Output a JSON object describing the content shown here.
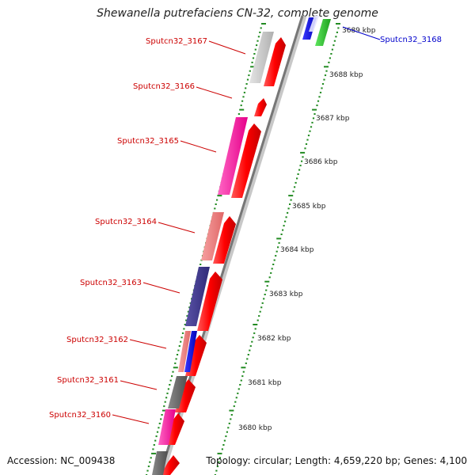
{
  "title": "Shewanella putrefaciens CN-32, complete genome",
  "footer": {
    "accession": "Accession: NC_009438",
    "summary": "Topology: circular; Length: 4,659,220 bp; Genes: 4,100"
  },
  "colors": {
    "gene_arrow": "#ff0000",
    "label_red": "#cc0000",
    "label_blue": "#0000cc",
    "tick_green": "#228b22",
    "backbone": "#808080"
  },
  "scale": {
    "labels": [
      "3689 kbp",
      "3688 kbp",
      "3687 kbp",
      "3686 kbp",
      "3685 kbp",
      "3684 kbp",
      "3683 kbp",
      "3682 kbp",
      "3681 kbp",
      "3680 kbp"
    ]
  },
  "genes": [
    {
      "label": "Sputcn32_3168",
      "strand": "forward",
      "label_color": "blue"
    },
    {
      "label": "Sputcn32_3167",
      "strand": "reverse",
      "label_color": "red"
    },
    {
      "label": "Sputcn32_3166",
      "strand": "reverse",
      "label_color": "red"
    },
    {
      "label": "Sputcn32_3165",
      "strand": "reverse",
      "label_color": "red"
    },
    {
      "label": "Sputcn32_3164",
      "strand": "reverse",
      "label_color": "red"
    },
    {
      "label": "Sputcn32_3163",
      "strand": "reverse",
      "label_color": "red"
    },
    {
      "label": "Sputcn32_3162",
      "strand": "reverse",
      "label_color": "red"
    },
    {
      "label": "Sputcn32_3161",
      "strand": "reverse",
      "label_color": "red"
    },
    {
      "label": "Sputcn32_3160",
      "strand": "reverse",
      "label_color": "red"
    }
  ]
}
